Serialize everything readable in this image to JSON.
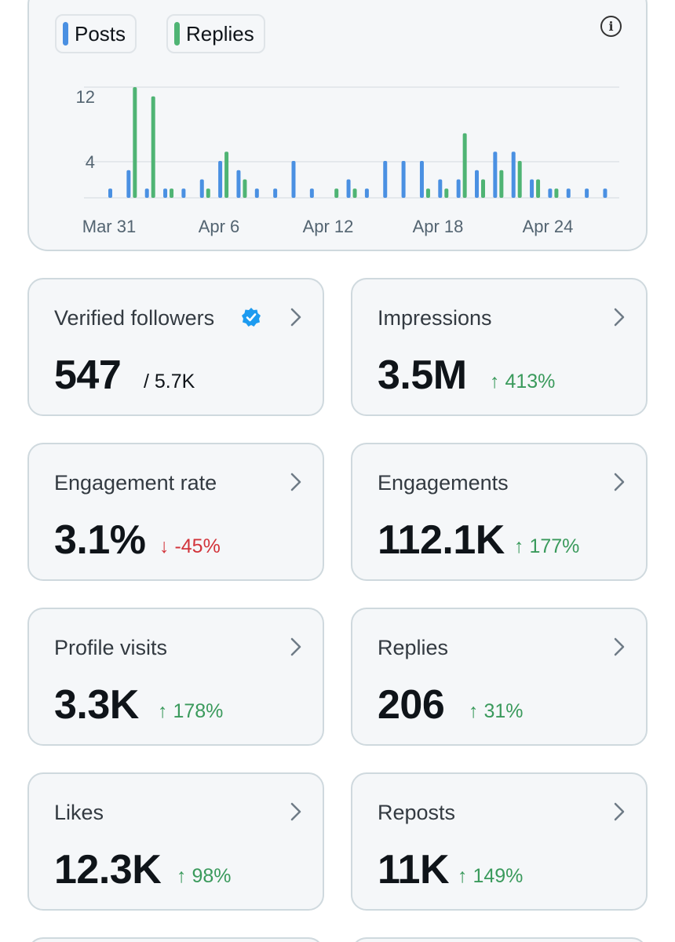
{
  "chart": {
    "legend": [
      {
        "label": "Posts",
        "color": "#4a90e2"
      },
      {
        "label": "Replies",
        "color": "#4fb474"
      }
    ],
    "info_icon": "info-icon",
    "y_ticks": [
      "12",
      "4"
    ],
    "x_ticks": [
      "Mar 31",
      "Apr 6",
      "Apr 12",
      "Apr 18",
      "Apr 24"
    ]
  },
  "chart_data": {
    "type": "bar",
    "categories": [
      "Mar 31",
      "Apr 1",
      "Apr 2",
      "Apr 3",
      "Apr 4",
      "Apr 5",
      "Apr 6",
      "Apr 7",
      "Apr 8",
      "Apr 9",
      "Apr 10",
      "Apr 11",
      "Apr 12",
      "Apr 13",
      "Apr 14",
      "Apr 15",
      "Apr 16",
      "Apr 17",
      "Apr 18",
      "Apr 19",
      "Apr 20",
      "Apr 21",
      "Apr 22",
      "Apr 23",
      "Apr 24",
      "Apr 25",
      "Apr 26",
      "Apr 27"
    ],
    "series": [
      {
        "name": "Posts",
        "values": [
          1,
          3,
          1,
          1,
          1,
          2,
          4,
          3,
          1,
          1,
          4,
          1,
          0,
          2,
          1,
          4,
          4,
          4,
          2,
          2,
          3,
          5,
          5,
          2,
          1,
          1,
          1,
          1
        ]
      },
      {
        "name": "Replies",
        "values": [
          0,
          12,
          11,
          1,
          0,
          1,
          5,
          2,
          0,
          0,
          0,
          0,
          1,
          1,
          0,
          0,
          0,
          1,
          1,
          7,
          2,
          3,
          4,
          2,
          1,
          0,
          0,
          0
        ]
      }
    ],
    "ylim": [
      0,
      13
    ],
    "grid": true
  },
  "cards": [
    {
      "label": "Verified followers",
      "value": "547",
      "sub": "/ 5.7K",
      "badge": "verified-badge-icon"
    },
    {
      "label": "Impressions",
      "value": "3.5M",
      "change": "↑ 413%",
      "direction": "up"
    },
    {
      "label": "Engagement rate",
      "value": "3.1%",
      "change": "↓ -45%",
      "direction": "down"
    },
    {
      "label": "Engagements",
      "value": "112.1K",
      "change": "↑ 177%",
      "direction": "up"
    },
    {
      "label": "Profile visits",
      "value": "3.3K",
      "change": "↑ 178%",
      "direction": "up"
    },
    {
      "label": "Replies",
      "value": "206",
      "change": "↑ 31%",
      "direction": "up"
    },
    {
      "label": "Likes",
      "value": "12.3K",
      "change": "↑ 98%",
      "direction": "up"
    },
    {
      "label": "Reposts",
      "value": "11K",
      "change": "↑ 149%",
      "direction": "up"
    }
  ],
  "colors": {
    "posts": "#4a90e2",
    "replies": "#4fb474",
    "up": "#3a9a5c",
    "down": "#d2343b",
    "verified": "#1d9bf0"
  }
}
